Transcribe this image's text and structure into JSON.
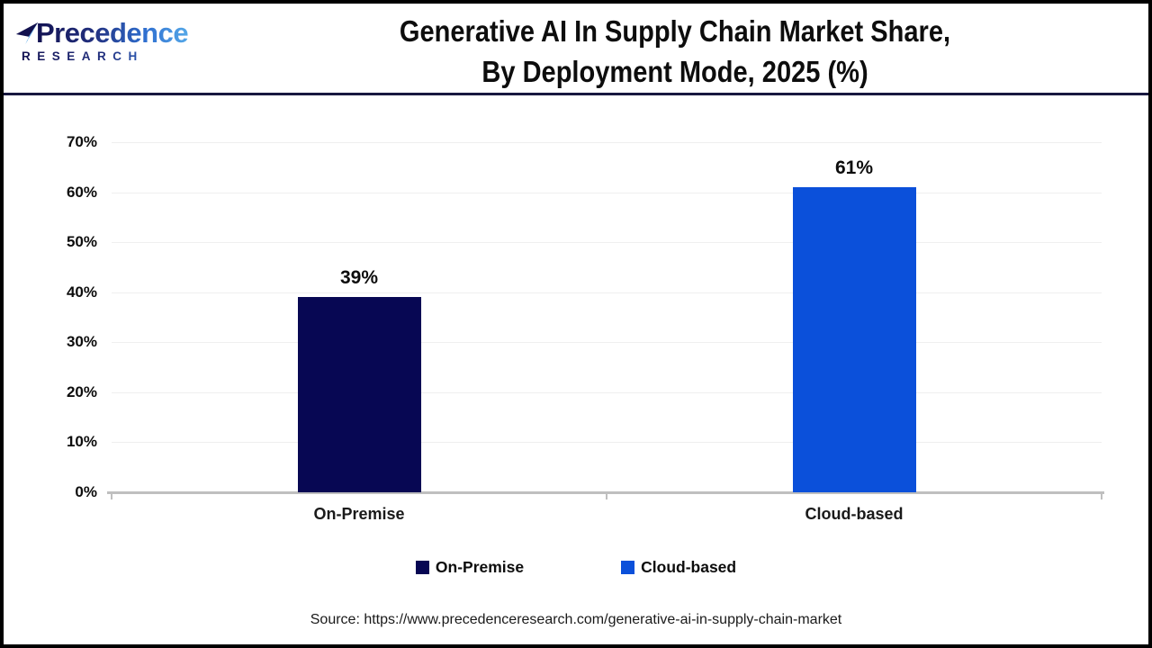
{
  "header": {
    "logo": {
      "line1": "Precedence",
      "line2": "RESEARCH"
    },
    "title_line1": "Generative AI In Supply Chain Market Share,",
    "title_line2": "By Deployment Mode, 2025 (%)"
  },
  "chart_data": {
    "type": "bar",
    "title": "Generative AI In Supply Chain Market Share, By Deployment Mode, 2025 (%)",
    "categories": [
      "On-Premise",
      "Cloud-based"
    ],
    "values": [
      39,
      61
    ],
    "value_labels": [
      "39%",
      "61%"
    ],
    "bar_colors": [
      "#070753",
      "#0b50da"
    ],
    "xlabel": "",
    "ylabel": "",
    "ylim": [
      0,
      70
    ],
    "y_tick_values": [
      0,
      10,
      20,
      30,
      40,
      50,
      60,
      70
    ],
    "y_tick_labels": [
      "0%",
      "10%",
      "20%",
      "30%",
      "40%",
      "50%",
      "60%",
      "70%"
    ],
    "grid": true,
    "legend_position": "bottom",
    "legend": [
      {
        "label": "On-Premise",
        "color": "#070753"
      },
      {
        "label": "Cloud-based",
        "color": "#0b50da"
      }
    ]
  },
  "footer": {
    "source": "Source: https://www.precedenceresearch.com/generative-ai-in-supply-chain-market"
  },
  "colors": {
    "frame": "#000000",
    "header_rule": "#181840",
    "axis_line": "#bfbfbf",
    "gridline": "#efefef",
    "logo_gradient_start": "#131252",
    "logo_gradient_end": "#55a8e8"
  }
}
